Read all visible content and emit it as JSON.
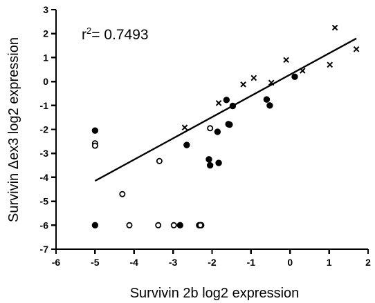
{
  "chart_data": {
    "type": "scatter",
    "title": "",
    "xlabel": "Survivin 2b log2 expression",
    "ylabel": "Survivin Δex3 log2 expression",
    "xlim": [
      -6,
      2
    ],
    "ylim": [
      -7,
      3
    ],
    "xticks": [
      "-6",
      "-5",
      "-4",
      "-3",
      "-2",
      "-1",
      "0",
      "1",
      "2"
    ],
    "yticks": [
      "-7",
      "-6",
      "-5",
      "-4",
      "-3",
      "-2",
      "-1",
      "0",
      "1",
      "2",
      "3"
    ],
    "grid": false,
    "legend": "none",
    "annotation": {
      "prefix": "r",
      "superscript": "2",
      "suffix": "= 0.7493"
    },
    "fit_line": {
      "x": [
        -5,
        1.7
      ],
      "y": [
        -4.15,
        1.8
      ]
    },
    "series": [
      {
        "marker": "filled-circle",
        "color": "#000000",
        "points": [
          [
            -5.0,
            -2.05
          ],
          [
            -5.0,
            -6.0
          ],
          [
            -2.82,
            -6.0
          ],
          [
            -2.33,
            -6.0
          ],
          [
            -2.28,
            -6.0
          ],
          [
            -2.65,
            -2.65
          ],
          [
            -2.08,
            -3.25
          ],
          [
            -2.05,
            -3.5
          ],
          [
            -1.83,
            -3.4
          ],
          [
            -1.86,
            -2.1
          ],
          [
            -1.58,
            -1.78
          ],
          [
            -1.55,
            -1.8
          ],
          [
            -1.47,
            -1.02
          ],
          [
            -1.63,
            -0.77
          ],
          [
            -0.6,
            -0.75
          ],
          [
            -0.52,
            -1.0
          ],
          [
            0.12,
            0.2
          ]
        ]
      },
      {
        "marker": "open-circle",
        "color": "#000000",
        "points": [
          [
            -5.0,
            -2.58
          ],
          [
            -5.0,
            -2.68
          ],
          [
            -3.35,
            -3.32
          ],
          [
            -4.3,
            -4.7
          ],
          [
            -4.12,
            -6.0
          ],
          [
            -3.38,
            -6.0
          ],
          [
            -2.98,
            -6.0
          ],
          [
            -2.3,
            -6.0
          ],
          [
            -2.05,
            -1.95
          ]
        ]
      },
      {
        "marker": "cross",
        "color": "#000000",
        "points": [
          [
            -2.7,
            -1.92
          ],
          [
            -1.83,
            -0.9
          ],
          [
            -1.2,
            -0.12
          ],
          [
            -0.93,
            0.15
          ],
          [
            -0.48,
            -0.05
          ],
          [
            -0.1,
            0.9
          ],
          [
            0.32,
            0.45
          ],
          [
            1.02,
            0.7
          ],
          [
            1.15,
            2.25
          ],
          [
            1.7,
            1.35
          ]
        ]
      }
    ]
  }
}
